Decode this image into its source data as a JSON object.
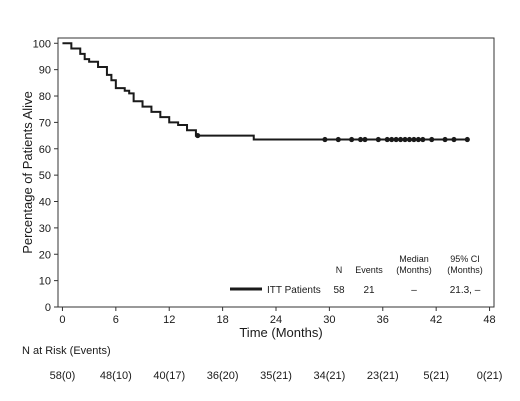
{
  "chart_data": {
    "type": "line",
    "xlabel": "Time (Months)",
    "ylabel": "Percentage of Patients Alive",
    "xlim": [
      -0.5,
      48.5
    ],
    "ylim": [
      0,
      102
    ],
    "xticks": [
      "0",
      "6",
      "12",
      "18",
      "24",
      "30",
      "36",
      "42",
      "48"
    ],
    "yticks": [
      "0",
      "10",
      "20",
      "30",
      "40",
      "50",
      "60",
      "70",
      "80",
      "90",
      "100"
    ],
    "grid": false,
    "series": [
      {
        "name": "ITT Patients",
        "color": "#1a1a1a",
        "x": [
          0,
          1,
          2,
          2.5,
          3,
          4,
          5,
          5.5,
          6,
          7,
          7.5,
          8,
          9,
          10,
          11,
          12,
          13,
          14,
          15,
          21.5,
          45.5
        ],
        "y": [
          100,
          98,
          96,
          94,
          93,
          91,
          88,
          86,
          83,
          82,
          81,
          78,
          76,
          74,
          72,
          70,
          69,
          67,
          65,
          63.5,
          63.5
        ],
        "censored_x": [
          15.2,
          29.5,
          31,
          32.5,
          33.5,
          34,
          35.5,
          36.5,
          37,
          37.5,
          38,
          38.5,
          39,
          39.5,
          40,
          40.5,
          41.5,
          43,
          44,
          45.5
        ]
      }
    ],
    "legend": {
      "placement": "bottom-right",
      "columns": [
        "N",
        "Events",
        "Median (Months)",
        "95% CI (Months)"
      ],
      "median_header": [
        "Median",
        "(Months)"
      ],
      "ci_header": [
        "95% CI",
        "(Months)"
      ],
      "row": {
        "label": "ITT Patients",
        "n": "58",
        "events": "21",
        "median": "–",
        "ci": "21.3, –"
      }
    }
  },
  "at_risk": {
    "title": "N at Risk (Events)",
    "values": [
      "58(0)",
      "48(10)",
      "40(17)",
      "36(20)",
      "35(21)",
      "34(21)",
      "23(21)",
      "5(21)",
      "0(21)"
    ],
    "months": [
      0,
      6,
      12,
      18,
      24,
      30,
      36,
      42,
      48
    ]
  }
}
